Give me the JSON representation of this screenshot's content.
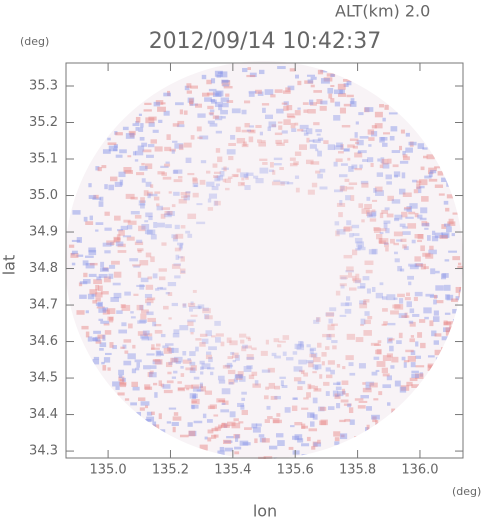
{
  "chart_data": {
    "type": "radar-image",
    "subtitle": "ALT(km) 2.0",
    "title": "2012/09/14 10:42:37",
    "y_unit": "(deg)",
    "x_unit": "(deg)",
    "x_label": "lon",
    "y_label": "lat",
    "xlim": [
      134.865,
      136.138
    ],
    "ylim": [
      34.281,
      35.363
    ],
    "xticks": [
      {
        "value": 135.0,
        "label": "135.0"
      },
      135.2,
      135.4,
      135.6,
      135.8,
      {
        "value": 136.0,
        "label": "136.0"
      }
    ],
    "yticks": [
      34.3,
      34.4,
      34.5,
      34.6,
      34.7,
      34.8,
      34.9,
      {
        "value": 35.0,
        "label": "35.0"
      },
      35.1,
      35.2,
      35.3
    ]
  }
}
